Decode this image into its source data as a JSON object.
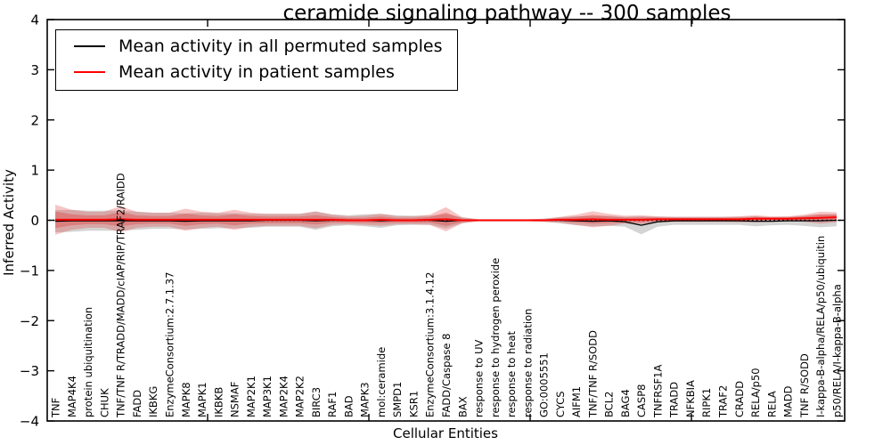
{
  "chart_data": {
    "type": "line",
    "title": "ceramide signaling pathway -- 300 samples",
    "xlabel": "Cellular Entities",
    "ylabel": "Inferred Activity",
    "ylim": [
      -4,
      4
    ],
    "grid": false,
    "legend_position": "upper left",
    "zero_reference_line": "dotted black line at y=0",
    "y_ticks": [
      {
        "value": 4,
        "label": "4"
      },
      {
        "value": 3,
        "label": "3"
      },
      {
        "value": 2,
        "label": "2"
      },
      {
        "value": 1,
        "label": "1"
      },
      {
        "value": 0,
        "label": "0"
      },
      {
        "value": -1,
        "label": "−1"
      },
      {
        "value": -2,
        "label": "−2"
      },
      {
        "value": -3,
        "label": "−3"
      },
      {
        "value": -4,
        "label": "−4"
      }
    ],
    "categories": [
      "TNF",
      "MAP4K4",
      "protein ubiquitination",
      "CHUK",
      "TNF/TNF R/TRADD/MADD/cIAP/RIP/TRAF2/RAIDD",
      "FADD",
      "IKBKG",
      "EnzymeConsortium:2.7.1.37",
      "MAPK8",
      "MAPK1",
      "IKBKB",
      "NSMAF",
      "MAP2K1",
      "MAP3K1",
      "MAP2K4",
      "MAP2K2",
      "BIRC3",
      "RAF1",
      "BAD",
      "MAPK3",
      "mol:ceramide",
      "SMPD1",
      "KSR1",
      "EnzymeConsortium:3.1.4.12",
      "FADD/Caspase 8",
      "BAX",
      "response to UV",
      "response to hydrogen peroxide",
      "response to heat",
      "response to radiation",
      "GO:0005551",
      "CYCS",
      "AIFM1",
      "TNF/TNF R/SODD",
      "BCL2",
      "BAG4",
      "CASP8",
      "TNFRSF1A",
      "TRADD",
      "NFKBIA",
      "RIPK1",
      "TRAF2",
      "CRADD",
      "RELA/p50",
      "RELA",
      "MADD",
      "TNF R/SODD",
      "I-kappa-B-alpha/RELA/p50/ubiquitin",
      "p50/RELA/I-kappa-B-alpha"
    ],
    "series": [
      {
        "name": "Mean activity in all permuted samples",
        "color": "#000000",
        "values": [
          -0.02,
          -0.01,
          -0.01,
          -0.01,
          -0.01,
          -0.01,
          -0.01,
          -0.01,
          -0.02,
          -0.01,
          -0.01,
          -0.01,
          -0.01,
          0,
          0,
          0,
          -0.01,
          0,
          0,
          0,
          -0.01,
          0,
          0,
          0,
          -0.02,
          0,
          0,
          0,
          0,
          0,
          0,
          0,
          -0.01,
          -0.02,
          -0.01,
          -0.03,
          -0.1,
          -0.03,
          -0.01,
          -0.01,
          -0.01,
          -0.01,
          -0.01,
          -0.02,
          -0.02,
          -0.01,
          -0.01,
          -0.01,
          0
        ]
      },
      {
        "name": "Mean activity in patient samples",
        "color": "#ff0000",
        "values": [
          0.01,
          0.01,
          0.01,
          0.01,
          0.02,
          0.01,
          0.01,
          0.01,
          0.01,
          0.01,
          0.01,
          0.01,
          0.01,
          0.01,
          0.01,
          0.01,
          0.01,
          0.01,
          0,
          0,
          0.01,
          0,
          0,
          0.01,
          0.02,
          0,
          0,
          0,
          0,
          0,
          0,
          0.01,
          0.01,
          0.02,
          0.01,
          0.01,
          0.01,
          0.02,
          0.02,
          0.02,
          0.02,
          0.02,
          0.02,
          0.03,
          0.03,
          0.03,
          0.04,
          0.05,
          0.06
        ]
      }
    ],
    "std_permuted": [
      0.22,
      0.22,
      0.2,
      0.2,
      0.2,
      0.18,
      0.16,
      0.16,
      0.16,
      0.16,
      0.15,
      0.15,
      0.14,
      0.13,
      0.13,
      0.13,
      0.18,
      0.12,
      0.1,
      0.12,
      0.14,
      0.1,
      0.09,
      0.09,
      0.14,
      0.06,
      0.02,
      0.02,
      0.02,
      0.02,
      0.03,
      0.06,
      0.09,
      0.1,
      0.1,
      0.1,
      0.18,
      0.1,
      0.08,
      0.08,
      0.08,
      0.08,
      0.08,
      0.1,
      0.08,
      0.08,
      0.1,
      0.13,
      0.12
    ],
    "std_patient": [
      0.3,
      0.2,
      0.16,
      0.16,
      0.26,
      0.16,
      0.14,
      0.14,
      0.22,
      0.16,
      0.14,
      0.2,
      0.14,
      0.12,
      0.12,
      0.12,
      0.17,
      0.1,
      0.08,
      0.09,
      0.12,
      0.08,
      0.08,
      0.1,
      0.24,
      0.06,
      0.02,
      0.02,
      0.02,
      0.02,
      0.03,
      0.06,
      0.1,
      0.16,
      0.12,
      0.08,
      0.09,
      0.06,
      0.05,
      0.05,
      0.05,
      0.05,
      0.06,
      0.07,
      0.05,
      0.05,
      0.07,
      0.12,
      0.1
    ],
    "band_colors": {
      "permuted": "#b0b0b0",
      "patient": "#e03c3c"
    }
  }
}
